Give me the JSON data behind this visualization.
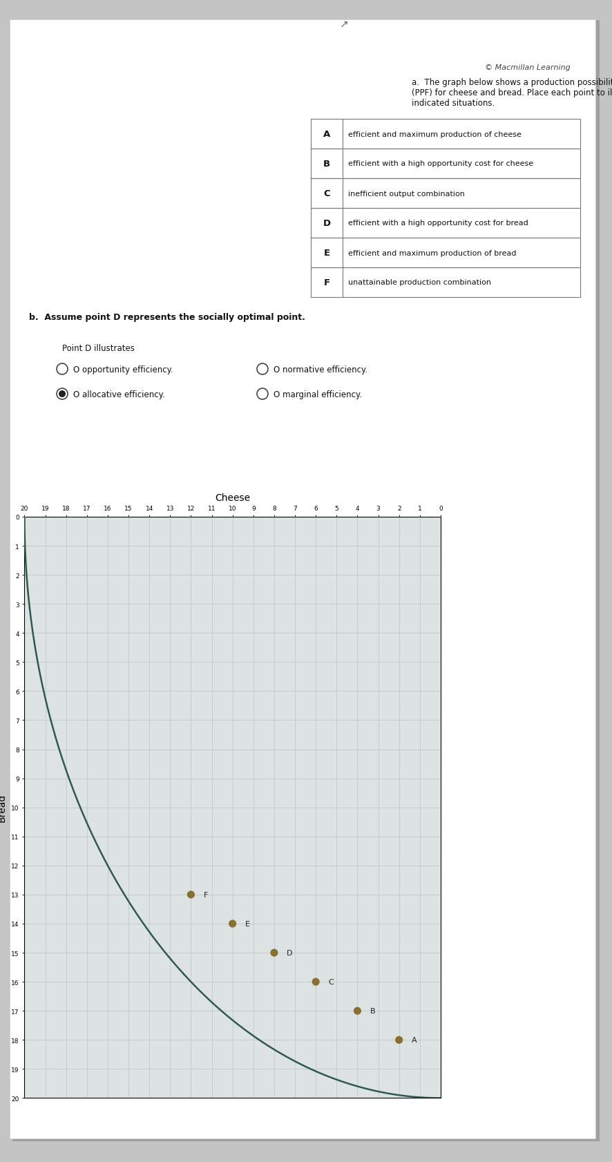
{
  "copyright": "© Macmillan Learning",
  "part_a": "a.  The graph below shows a production possibility frontier\n(PPF) for cheese and bread. Place each point to illustrate the\nindicated situations.",
  "part_b": "b.  Assume point D represents the socially optimal point.",
  "illustrates": "Point D illustrates",
  "radio_options": [
    [
      "opportunity efficiency.",
      "normative efficiency."
    ],
    [
      "allocative efficiency.",
      "marginal efficiency."
    ]
  ],
  "selected": "allocative efficiency.",
  "table_rows": [
    [
      "A",
      "efficient and maximum production of cheese"
    ],
    [
      "B",
      "efficient with a high opportunity cost for cheese"
    ],
    [
      "C",
      "inefficient output combination"
    ],
    [
      "D",
      "efficient with a high opportunity cost for bread"
    ],
    [
      "E",
      "efficient and maximum production of bread"
    ],
    [
      "F",
      "unattainable production combination"
    ]
  ],
  "cheese_label": "Cheese",
  "bread_label": "Bread",
  "ppf_color": "#2d5a50",
  "dot_color": "#8a7030",
  "grid_color": "#b8c4c4",
  "axes_bg": "#dde3e3",
  "page_color": "#f0efef",
  "bg_color": "#c4c4c4",
  "point_A": [
    2,
    18
  ],
  "point_B": [
    4,
    17
  ],
  "point_C": [
    6,
    16
  ],
  "point_D": [
    8,
    15
  ],
  "point_E": [
    10,
    14
  ],
  "point_F": [
    12,
    13
  ]
}
